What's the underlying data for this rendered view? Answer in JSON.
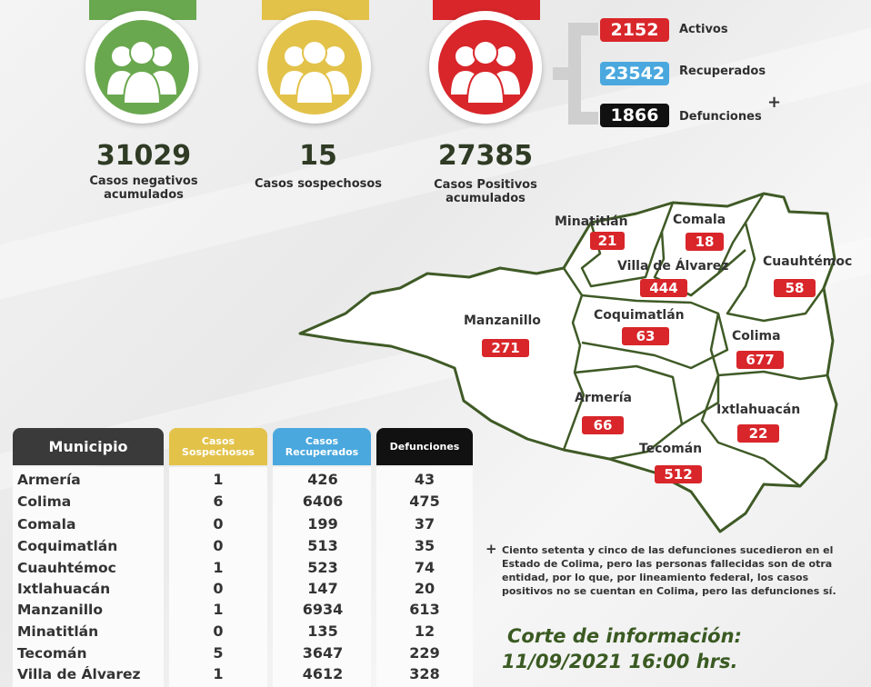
{
  "summary": {
    "negativos": {
      "value": "31029",
      "caption_line1": "Casos negativos",
      "caption_line2": "acumulados",
      "color": "#6aa84f"
    },
    "sospechosos": {
      "value": "15",
      "caption": "Casos sospechosos",
      "color": "#e3c24a"
    },
    "positivos": {
      "value": "27385",
      "caption_line1": "Casos Positivos",
      "caption_line2": "acumulados",
      "color": "#d8262a"
    }
  },
  "status": {
    "activos": {
      "value": "2152",
      "label": "Activos",
      "color": "#d8262a"
    },
    "recuperados": {
      "value": "23542",
      "label": "Recuperados",
      "color": "#4aa8de"
    },
    "defunciones": {
      "value": "1866",
      "label": "Defunciones",
      "color": "#111111"
    },
    "plus_mark": "+"
  },
  "map": {
    "municipios": [
      {
        "name": "Minatitlán",
        "count": "21"
      },
      {
        "name": "Comala",
        "count": "18"
      },
      {
        "name": "Villa de Álvarez",
        "count": "444"
      },
      {
        "name": "Cuauhtémoc",
        "count": "58"
      },
      {
        "name": "Manzanillo",
        "count": "271"
      },
      {
        "name": "Coquimatlán",
        "count": "63"
      },
      {
        "name": "Colima",
        "count": "677"
      },
      {
        "name": "Armería",
        "count": "66"
      },
      {
        "name": "Ixtlahuacán",
        "count": "22"
      },
      {
        "name": "Tecomán",
        "count": "512"
      }
    ]
  },
  "table": {
    "headers": {
      "municipio": "Municipio",
      "sospechosos_l1": "Casos",
      "sospechosos_l2": "Sospechosos",
      "recuperados_l1": "Casos",
      "recuperados_l2": "Recuperados",
      "defunciones": "Defunciones"
    },
    "rows": [
      {
        "municipio": "Armería",
        "sospechosos": "1",
        "recuperados": "426",
        "defunciones": "43"
      },
      {
        "municipio": "Colima",
        "sospechosos": "6",
        "recuperados": "6406",
        "defunciones": "475"
      },
      {
        "municipio": "Comala",
        "sospechosos": "0",
        "recuperados": "199",
        "defunciones": "37"
      },
      {
        "municipio": "Coquimatlán",
        "sospechosos": "0",
        "recuperados": "513",
        "defunciones": "35"
      },
      {
        "municipio": "Cuauhtémoc",
        "sospechosos": "1",
        "recuperados": "523",
        "defunciones": "74"
      },
      {
        "municipio": "Ixtlahuacán",
        "sospechosos": "0",
        "recuperados": "147",
        "defunciones": "20"
      },
      {
        "municipio": "Manzanillo",
        "sospechosos": "1",
        "recuperados": "6934",
        "defunciones": "613"
      },
      {
        "municipio": "Minatitlán",
        "sospechosos": "0",
        "recuperados": "135",
        "defunciones": "12"
      },
      {
        "municipio": "Tecomán",
        "sospechosos": "5",
        "recuperados": "3647",
        "defunciones": "229"
      },
      {
        "municipio": "Villa de Álvarez",
        "sospechosos": "1",
        "recuperados": "4612",
        "defunciones": "328"
      }
    ]
  },
  "note": {
    "mark": "+",
    "text": "Ciento setenta y cinco de las defunciones sucedieron en el Estado de Colima, pero las personas fallecidas son de otra entidad, por lo que, por lineamiento federal, los casos positivos no se cuentan en Colima, pero las defunciones sí."
  },
  "corte": {
    "line1": "Corte de información:",
    "line2": "11/09/2021 16:00 hrs."
  },
  "colors": {
    "header_dark": "#3a3a3a",
    "header_yellow": "#e3c24a",
    "header_blue": "#4aa8de",
    "header_black": "#111111",
    "map_outline": "#3f5a26",
    "badge_red": "#d8262a"
  }
}
